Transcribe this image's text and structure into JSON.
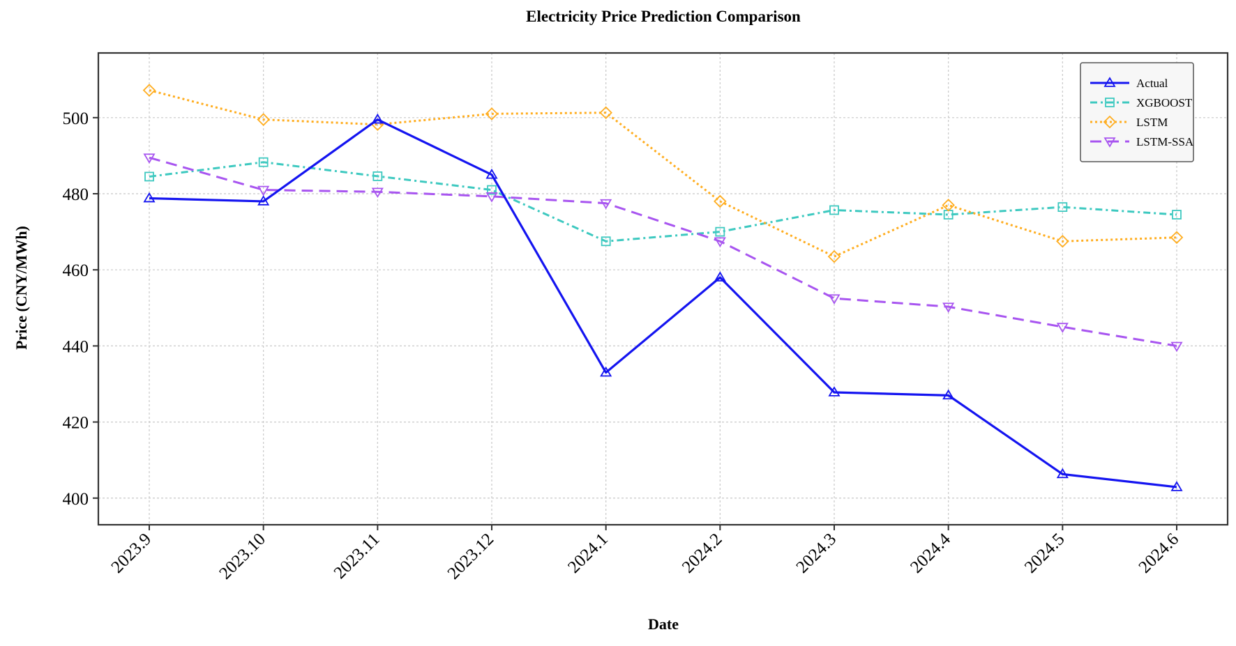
{
  "chart_data": {
    "type": "line",
    "title": "Electricity Price Prediction Comparison",
    "xlabel": "Date",
    "ylabel": "Price (CNY/MWh)",
    "categories": [
      "2023.9",
      "2023.10",
      "2023.11",
      "2023.12",
      "2024.1",
      "2024.2",
      "2024.3",
      "2024.4",
      "2024.5",
      "2024.6"
    ],
    "ylim": [
      393,
      517
    ],
    "yticks": [
      400,
      420,
      440,
      460,
      480,
      500
    ],
    "grid": true,
    "legend_position": "top-right",
    "series": [
      {
        "name": "Actual",
        "color": "#1414f0",
        "line_style": "solid",
        "marker": "triangle-up",
        "values": [
          478.8,
          478.0,
          499.5,
          485.0,
          433.0,
          458.0,
          427.8,
          427.0,
          406.3,
          402.9
        ]
      },
      {
        "name": "XGBOOST",
        "color": "#3ec9c0",
        "line_style": "dashdot",
        "marker": "square",
        "values": [
          484.5,
          488.3,
          484.6,
          481.0,
          467.5,
          470.0,
          475.7,
          474.5,
          476.5,
          474.5
        ]
      },
      {
        "name": "LSTM",
        "color": "#ffad1f",
        "line_style": "dotted",
        "marker": "diamond",
        "values": [
          507.2,
          499.5,
          498.2,
          501.0,
          501.3,
          478.0,
          463.5,
          477.0,
          467.5,
          468.5
        ]
      },
      {
        "name": "LSTM-SSA",
        "color": "#a855f0",
        "line_style": "dashed",
        "marker": "triangle-down",
        "values": [
          489.5,
          481.0,
          480.5,
          479.3,
          477.5,
          467.5,
          452.5,
          450.3,
          445.0,
          440.0
        ]
      }
    ]
  }
}
